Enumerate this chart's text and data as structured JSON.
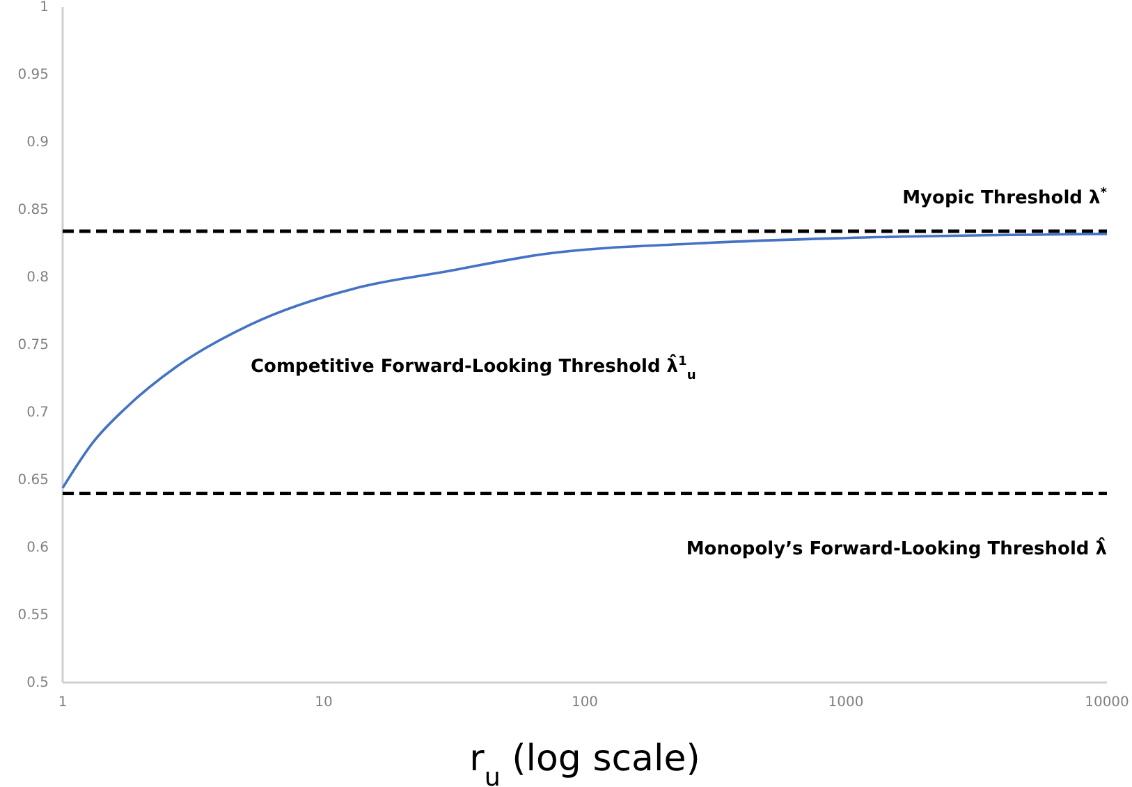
{
  "chart_data": {
    "type": "line",
    "log": "x",
    "xlabel": "r$_{u}$ (log scale)",
    "xlim": [
      1,
      10000
    ],
    "xticks": [
      1,
      10,
      100,
      1000,
      10000
    ],
    "ylim": [
      0.5,
      1
    ],
    "yticks": [
      0.5,
      0.55,
      0.6,
      0.65,
      0.7,
      0.75,
      0.8,
      0.85,
      0.9,
      0.95,
      1
    ],
    "grid": false,
    "legend": false,
    "marker": "none",
    "line_style": "solid",
    "annotations": [
      {
        "text": "Competitive Forward-Looking Threshold λ̂$^{1}$$_{u}$",
        "x": 5.25,
        "y": 0.765
      }
    ],
    "series": [
      {
        "color": "#4472c4",
        "x": [
          1,
          1.31,
          1.74,
          2.74,
          5.25,
          14,
          29,
          69,
          268,
          1000,
          10000
        ],
        "values": [
          0.644,
          0.678,
          0.703,
          0.734,
          0.765,
          0.793,
          0.804,
          0.817,
          0.825,
          0.829,
          0.832
        ]
      }
    ],
    "ref_lines": [
      {
        "axis": "y",
        "value": 0.834,
        "label": "Myopic Threshold λ$^{*}$",
        "color": "#000000",
        "line_style": "dashed"
      },
      {
        "axis": "y",
        "value": 0.64,
        "label": "Monopoly’s Forward-Looking Threshold λ̂",
        "color": "#000000",
        "line_style": "dashed"
      }
    ]
  }
}
